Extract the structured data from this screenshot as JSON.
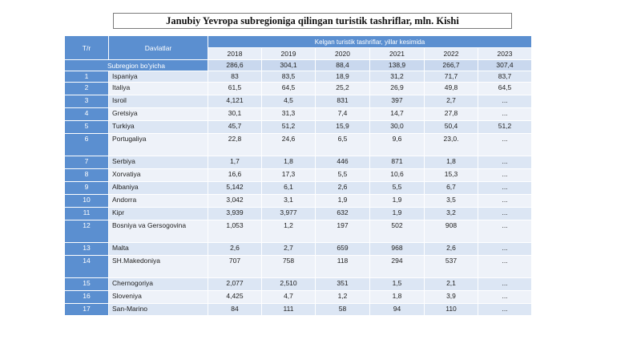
{
  "title": "Janubiy Yevropa subregioniga qilingan turistik tashriflar, mln. Kishi",
  "header": {
    "num_label": "T/r",
    "country_label": "Davlatlar",
    "span_label": "Kelgan turistik tashriflar, yillar kesimida",
    "years": [
      "2018",
      "2019",
      "2020",
      "2021",
      "2022",
      "2023"
    ]
  },
  "subregion": {
    "label": "Subregion bo'yicha",
    "values": [
      "286,6",
      "304,1",
      "88,4",
      "138,9",
      "266,7",
      "307,4"
    ]
  },
  "rows": [
    {
      "num": "1",
      "country": "Ispaniya",
      "values": [
        "83",
        "83,5",
        "18,9",
        "31,2",
        "71,7",
        "83,7"
      ]
    },
    {
      "num": "2",
      "country": "Italiya",
      "values": [
        "61,5",
        "64,5",
        "25,2",
        "26,9",
        "49,8",
        "64,5"
      ]
    },
    {
      "num": "3",
      "country": "Isroil",
      "values": [
        "4,121",
        "4,5",
        "831",
        "397",
        "2,7",
        "..."
      ]
    },
    {
      "num": "4",
      "country": "Gretsiya",
      "values": [
        "30,1",
        "31,3",
        "7,4",
        "14,7",
        "27,8",
        "..."
      ]
    },
    {
      "num": "5",
      "country": "Turkiya",
      "values": [
        "45,7",
        "51,2",
        "15,9",
        "30,0",
        "50,4",
        "51,2"
      ]
    },
    {
      "num": "6",
      "country": "Portugaliya",
      "values": [
        "22,8",
        "24,6",
        "6,5",
        "9,6",
        "23,0.",
        "..."
      ]
    },
    {
      "num": "7",
      "country": "Serbiya",
      "values": [
        "1,7",
        "1,8",
        "446",
        "871",
        "1,8",
        "..."
      ]
    },
    {
      "num": "8",
      "country": "Xorvatiya",
      "values": [
        "16,6",
        "17,3",
        "5,5",
        "10,6",
        "15,3",
        "..."
      ]
    },
    {
      "num": "9",
      "country": "Albaniya",
      "values": [
        "5,142",
        "6,1",
        "2,6",
        "5,5",
        "6,7",
        "..."
      ]
    },
    {
      "num": "10",
      "country": "Andorra",
      "values": [
        "3,042",
        "3,1",
        "1,9",
        "1,9",
        "3,5",
        "..."
      ]
    },
    {
      "num": "11",
      "country": "Kipr",
      "values": [
        "3,939",
        "3,977",
        "632",
        "1,9",
        "3,2",
        "..."
      ]
    },
    {
      "num": "12",
      "country": "Bosniya va Gersogovina",
      "values": [
        "1,053",
        "1,2",
        "197",
        "502",
        "908",
        "..."
      ]
    },
    {
      "num": "13",
      "country": "Malta",
      "values": [
        "2,6",
        "2,7",
        "659",
        "968",
        "2,6",
        "..."
      ]
    },
    {
      "num": "14",
      "country": "SH.Makedoniya",
      "values": [
        "707",
        "758",
        "118",
        "294",
        "537",
        "..."
      ]
    },
    {
      "num": "15",
      "country": "Chernogoriya",
      "values": [
        "2,077",
        "2,510",
        "351",
        "1,5",
        "2,1",
        "..."
      ]
    },
    {
      "num": "16",
      "country": "Sloveniya",
      "values": [
        "4,425",
        "4,7",
        "1,2",
        "1,8",
        "3,9",
        "..."
      ]
    },
    {
      "num": "17",
      "country": "San-Marino",
      "values": [
        "84",
        "111",
        "58",
        "94",
        "110",
        "..."
      ]
    }
  ]
}
